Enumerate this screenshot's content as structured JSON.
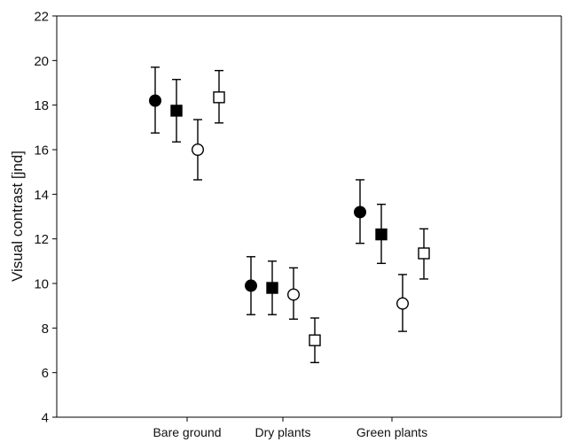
{
  "chart_data": {
    "type": "scatter",
    "title": "",
    "xlabel": "",
    "ylabel": "Visual contrast [jnd]",
    "categories": [
      "Bare ground",
      "Dry plants",
      "Green plants"
    ],
    "ylim": [
      4,
      22
    ],
    "yticks": [
      4,
      6,
      8,
      10,
      12,
      14,
      16,
      18,
      20,
      22
    ],
    "grid": false,
    "legend": "none",
    "series": [
      {
        "marker": "filled-circle",
        "values": [
          18.2,
          9.9,
          13.2
        ],
        "lower": [
          16.75,
          8.6,
          11.8
        ],
        "upper": [
          19.7,
          11.2,
          14.65
        ]
      },
      {
        "marker": "filled-square",
        "values": [
          17.75,
          9.8,
          12.2
        ],
        "lower": [
          16.35,
          8.6,
          10.9
        ],
        "upper": [
          19.15,
          11.0,
          13.55
        ]
      },
      {
        "marker": "open-circle",
        "values": [
          16.0,
          9.5,
          9.1
        ],
        "lower": [
          14.65,
          8.4,
          7.85
        ],
        "upper": [
          17.35,
          10.7,
          10.4
        ]
      },
      {
        "marker": "open-square",
        "values": [
          18.35,
          7.45,
          11.35
        ],
        "lower": [
          17.2,
          6.45,
          10.2
        ],
        "upper": [
          19.55,
          8.45,
          12.45
        ]
      }
    ]
  }
}
